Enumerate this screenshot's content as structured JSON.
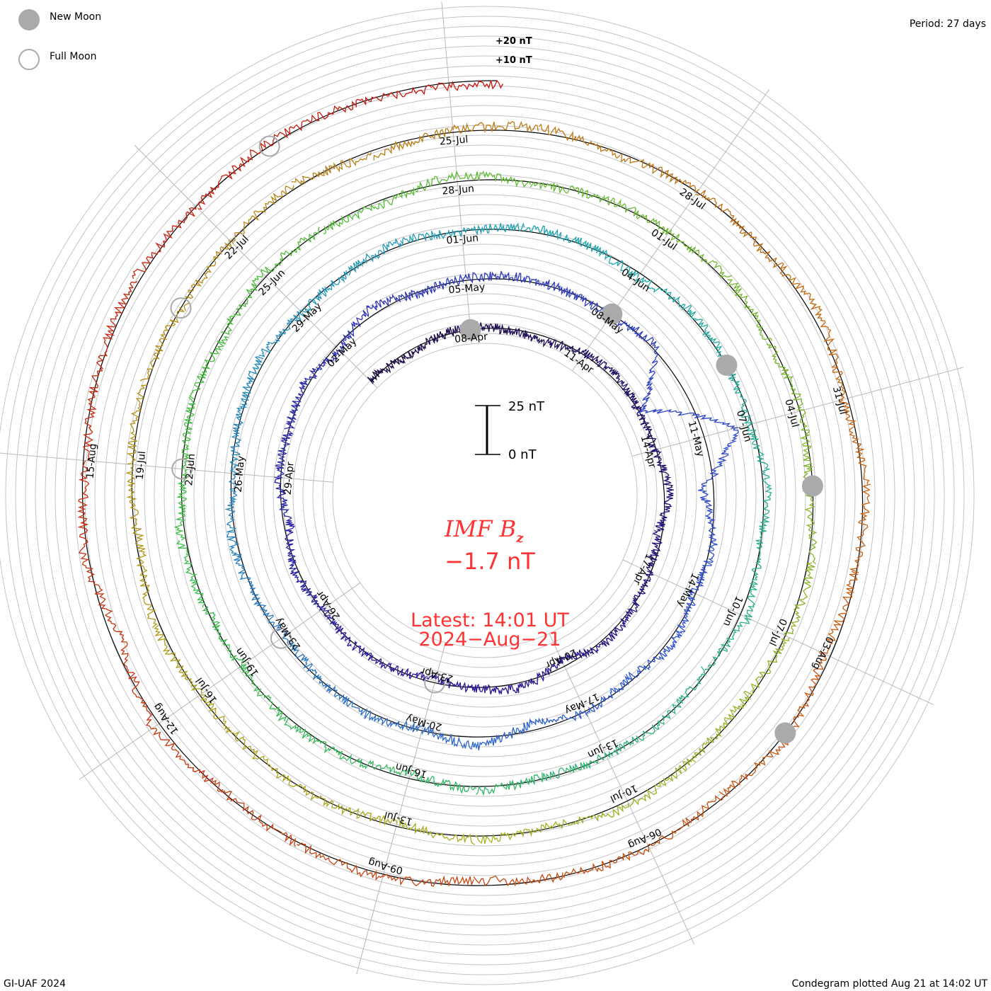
{
  "legend": {
    "new_moon": "New Moon",
    "full_moon": "Full Moon"
  },
  "period": "Period: 27 days",
  "footer_left": "GI-UAF 2024",
  "footer_right": "Condegram plotted Aug 21 at 14:02 UT",
  "scale": {
    "top": "25 nT",
    "bottom": "0 nT",
    "ring_plus20": "+20 nT",
    "ring_plus10": "+10 nT"
  },
  "center": {
    "title": "IMF B",
    "subscript": "z",
    "value": "−1.7 nT",
    "latest": "Latest: 14:01 UT",
    "date": "2024−Aug−21"
  },
  "colors": {
    "new_moon": "#aaaaaa",
    "full_moon": "#aaaaaa",
    "text_red": "#ff3333",
    "grid": "#bbbbbb"
  },
  "chart_data": {
    "type": "line",
    "subtype": "condegram-spiral",
    "title": "IMF Bz",
    "units": "nT",
    "period_days": 27,
    "start_date": "2024-04-05",
    "end_date": "2024-08-21",
    "top_reference_date": "2024-04-08",
    "daily_bz": [
      1,
      -2,
      0,
      2,
      -1,
      -3,
      1,
      2,
      0,
      -1,
      3,
      -2,
      -1,
      1,
      2,
      -4,
      3,
      1,
      -2,
      0,
      1,
      -1,
      2,
      -3,
      1,
      0,
      2,
      -3,
      4,
      -1,
      1,
      2,
      0,
      -2,
      3,
      -25,
      18,
      -6,
      2,
      -1,
      3,
      -2,
      1,
      -4,
      5,
      -1,
      2,
      0,
      -3,
      1,
      2,
      -2,
      1,
      3,
      -1,
      0,
      2,
      -1,
      2,
      1,
      -3,
      2,
      0,
      -2,
      3,
      -1,
      4,
      -2,
      1,
      0,
      -1,
      2,
      -3,
      1,
      2,
      -1,
      0,
      3,
      -2,
      1,
      -1,
      2,
      0,
      -3,
      4,
      -2,
      1,
      0,
      2,
      -1,
      1,
      -3,
      2,
      1,
      -2,
      0,
      3,
      -1,
      2,
      -2,
      1,
      0,
      -1,
      3,
      -2,
      1,
      2,
      -1,
      0,
      2,
      -3,
      1,
      3,
      -2,
      1,
      -1,
      4,
      -3,
      2,
      -1,
      -4,
      3,
      -2,
      1,
      0,
      -3,
      2,
      1,
      -1,
      4,
      -5,
      2,
      -2,
      1,
      3,
      -1,
      2,
      0,
      -2
    ],
    "date_labels": [
      "08-Apr",
      "11-Apr",
      "14-Apr",
      "17-Apr",
      "20-Apr",
      "23-Apr",
      "26-Apr",
      "29-Apr",
      "02-May",
      "05-May",
      "08-May",
      "11-May",
      "14-May",
      "17-May",
      "20-May",
      "23-May",
      "26-May",
      "29-May",
      "01-Jun",
      "04-Jun",
      "07-Jun",
      "10-Jun",
      "13-Jun",
      "16-Jun",
      "19-Jun",
      "22-Jun",
      "25-Jun",
      "28-Jun",
      "01-Jul",
      "04-Jul",
      "07-Jul",
      "10-Jul",
      "13-Jul",
      "16-Jul",
      "19-Jul",
      "22-Jul",
      "25-Jul",
      "28-Jul",
      "31-Jul",
      "03-Aug",
      "06-Aug",
      "09-Aug",
      "12-Aug",
      "15-Aug"
    ],
    "label_interval_days": 3,
    "new_moons": [
      "2024-04-08",
      "2024-05-08",
      "2024-06-06",
      "2024-07-05",
      "2024-08-04"
    ],
    "full_moons": [
      "2024-04-23",
      "2024-05-23",
      "2024-06-22",
      "2024-07-21",
      "2024-08-19"
    ]
  }
}
